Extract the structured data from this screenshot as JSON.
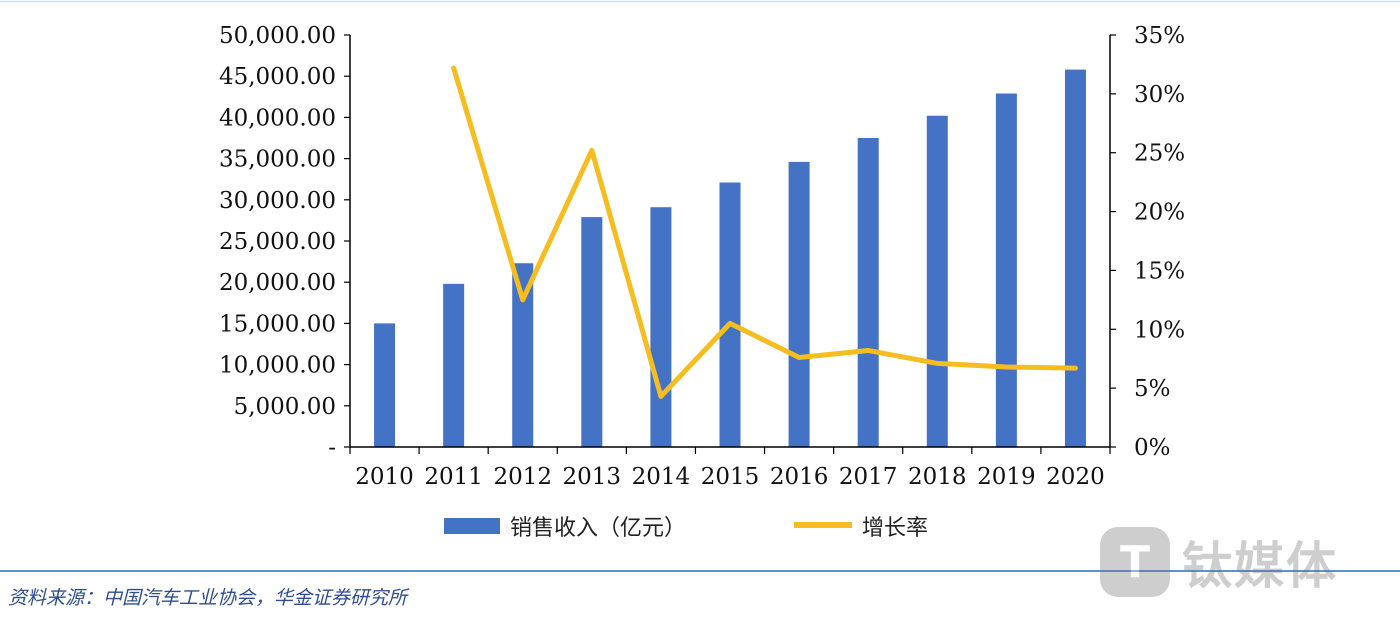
{
  "chart_data": {
    "type": "bar",
    "categories": [
      "2010",
      "2011",
      "2012",
      "2013",
      "2014",
      "2015",
      "2016",
      "2017",
      "2018",
      "2019",
      "2020"
    ],
    "series": [
      {
        "name": "销售收入（亿元）",
        "type": "bar",
        "axis": "left",
        "color": "#4472c4",
        "values": [
          15000,
          19800,
          22300,
          27900,
          29100,
          32100,
          34600,
          37500,
          40200,
          42900,
          45800
        ]
      },
      {
        "name": "增长率",
        "type": "line",
        "axis": "right",
        "color": "#f5bd1f",
        "values": [
          null,
          32.2,
          12.5,
          25.2,
          4.3,
          10.5,
          7.6,
          8.2,
          7.1,
          6.8,
          6.7
        ]
      }
    ],
    "y_left": {
      "min": 0,
      "max": 50000,
      "ticks": [
        "-",
        "5,000.00",
        "10,000.00",
        "15,000.00",
        "20,000.00",
        "25,000.00",
        "30,000.00",
        "35,000.00",
        "40,000.00",
        "45,000.00",
        "50,000.00"
      ]
    },
    "y_right": {
      "min": 0,
      "max": 35,
      "ticks": [
        "0%",
        "5%",
        "10%",
        "15%",
        "20%",
        "25%",
        "30%",
        "35%"
      ]
    },
    "grid": false,
    "legend_position": "bottom"
  },
  "legend": {
    "bar_label": "销售收入（亿元）",
    "line_label": "增长率"
  },
  "footer": {
    "source": "资料来源：中国汽车工业协会，华金证券研究所"
  },
  "watermark": {
    "logo_glyph": "T",
    "text": "钛媒体"
  }
}
